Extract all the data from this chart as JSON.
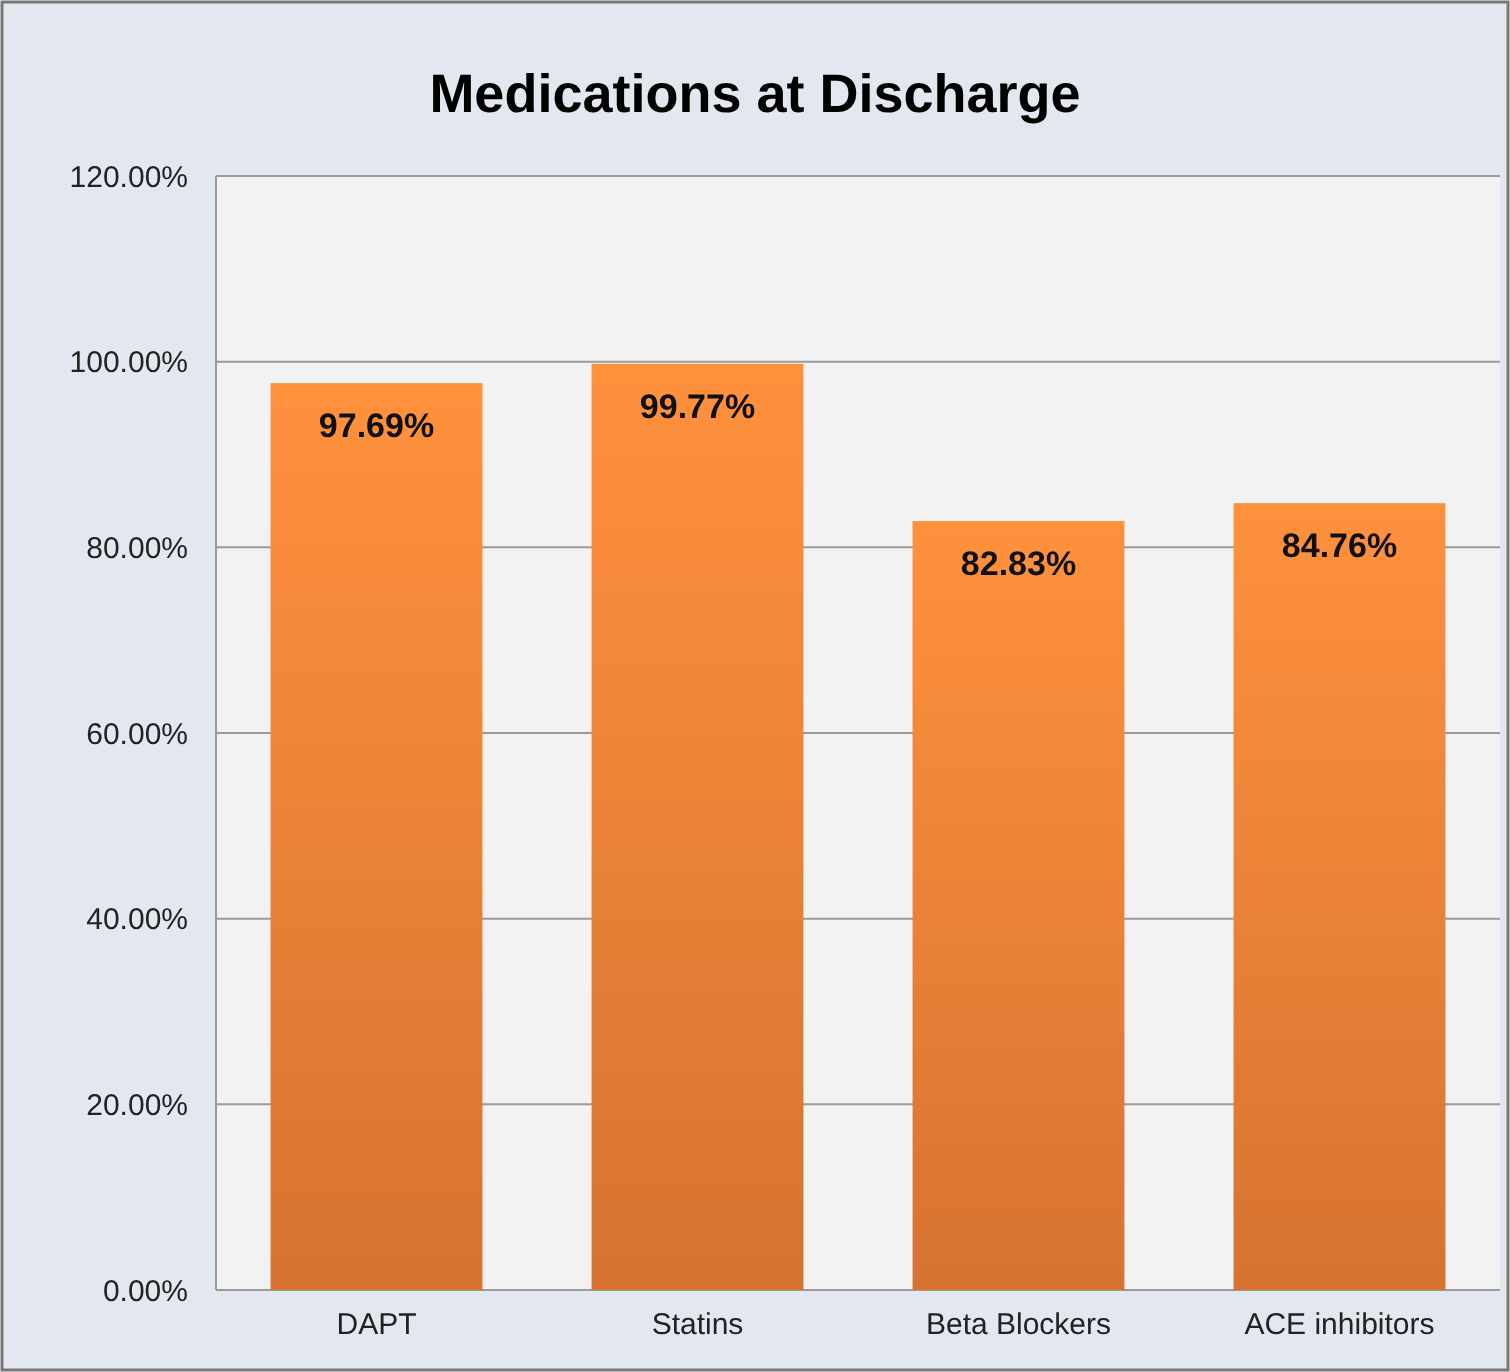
{
  "chart_data": {
    "type": "bar",
    "title": "Medications at Discharge",
    "categories": [
      "DAPT",
      "Statins",
      "Beta Blockers",
      "ACE inhibitors"
    ],
    "values": [
      97.69,
      99.77,
      82.83,
      84.76
    ],
    "value_labels": [
      "97.69%",
      "99.77%",
      "82.83%",
      "84.76%"
    ],
    "color": "#ee8036",
    "ylim": [
      0,
      120
    ],
    "yticks": [
      {
        "value": 0,
        "label": "0.00%"
      },
      {
        "value": 20,
        "label": "20.00%"
      },
      {
        "value": 40,
        "label": "40.00%"
      },
      {
        "value": 60,
        "label": "60.00%"
      },
      {
        "value": 80,
        "label": "80.00%"
      },
      {
        "value": 100,
        "label": "100.00%"
      },
      {
        "value": 120,
        "label": "120.00%"
      }
    ],
    "grid": "y"
  }
}
